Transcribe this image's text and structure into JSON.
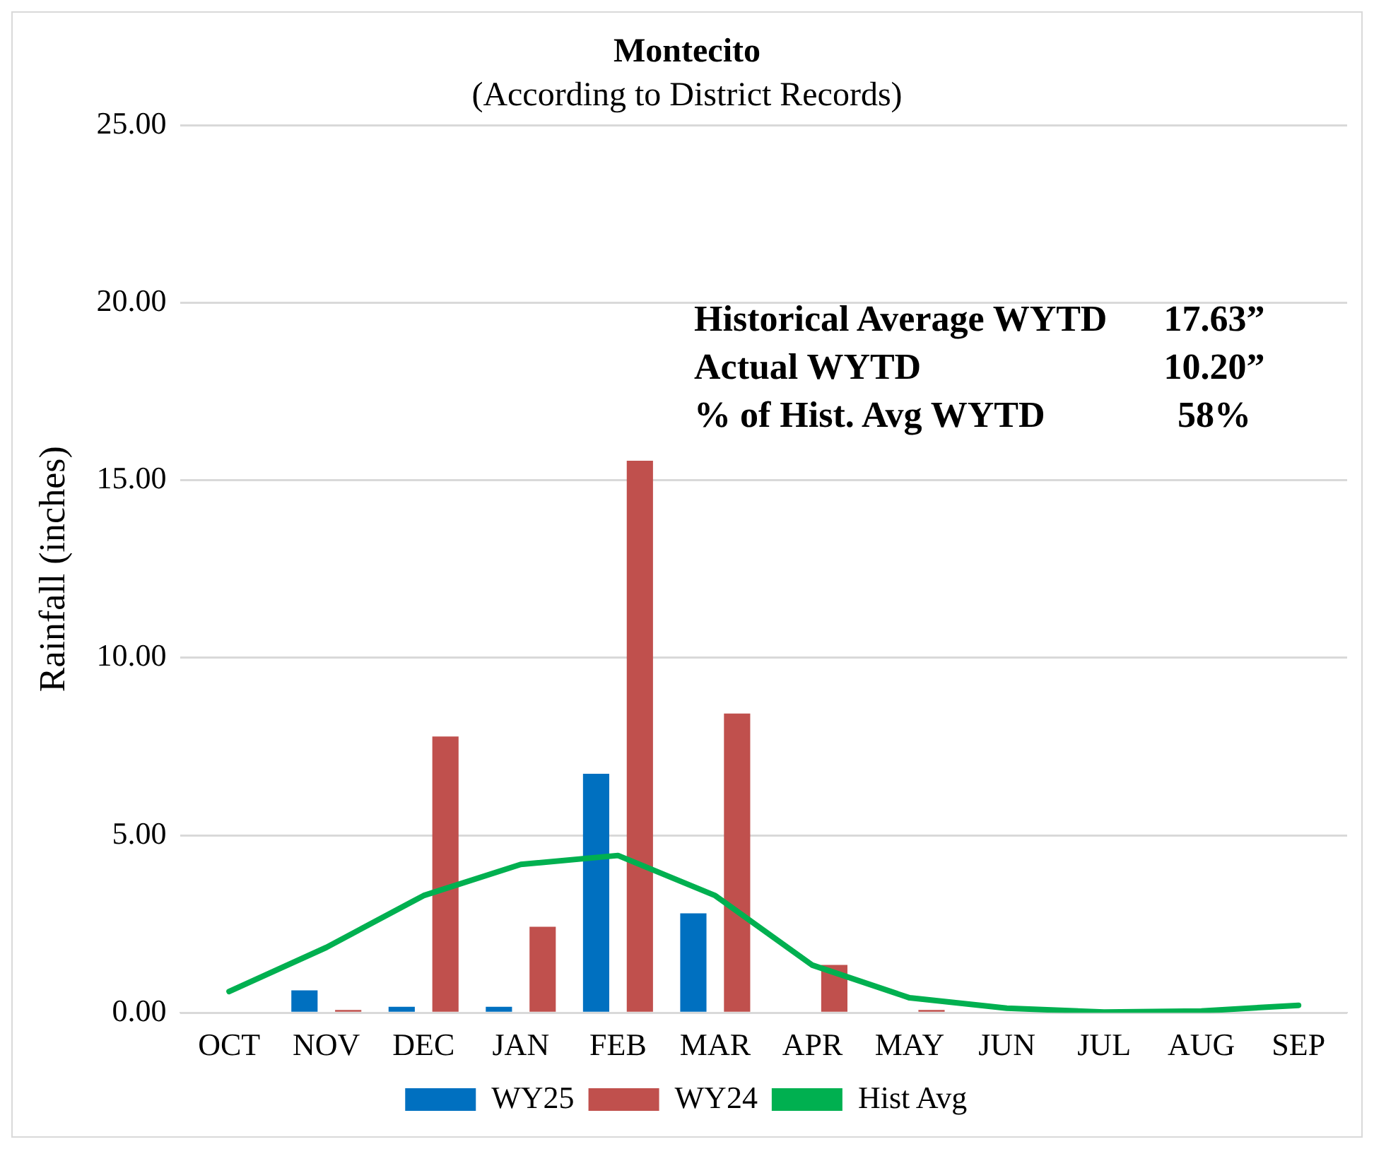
{
  "chart_data": {
    "type": "bar",
    "title": "Montecito",
    "subtitle": "(According to District Records)",
    "ylabel": "Rainfall (inches)",
    "categories": [
      "OCT",
      "NOV",
      "DEC",
      "JAN",
      "FEB",
      "MAR",
      "APR",
      "MAY",
      "JUN",
      "JUL",
      "AUG",
      "SEP"
    ],
    "series": [
      {
        "name": "WY25",
        "color": "#0070c0",
        "values": [
          0,
          0.63,
          0.17,
          0.17,
          6.73,
          2.8,
          null,
          null,
          null,
          null,
          null,
          null
        ]
      },
      {
        "name": "WY24",
        "color": "#c0504d",
        "values": [
          0,
          0.08,
          7.78,
          2.42,
          15.55,
          8.43,
          1.35,
          0.08,
          0,
          0,
          0,
          0
        ]
      },
      {
        "name": "Hist Avg",
        "type": "line",
        "color": "#00b050",
        "values": [
          0.6,
          1.84,
          3.3,
          4.18,
          4.43,
          3.3,
          1.34,
          0.42,
          0.13,
          0.02,
          0.05,
          0.21
        ]
      }
    ],
    "ylim": [
      0,
      25
    ],
    "yticks": [
      {
        "value": 0,
        "label": "0.00"
      },
      {
        "value": 5,
        "label": "5.00"
      },
      {
        "value": 10,
        "label": "10.00"
      },
      {
        "value": 15,
        "label": "15.00"
      },
      {
        "value": 20,
        "label": "20.00"
      },
      {
        "value": 25,
        "label": "25.00"
      }
    ],
    "grid": "y",
    "legend": "bottom",
    "marker": "none",
    "annotations": [
      "Historical Average WYTD",
      "17.63”",
      "Actual WYTD",
      "10.20”",
      "% of Hist. Avg WYTD",
      "58%"
    ]
  }
}
